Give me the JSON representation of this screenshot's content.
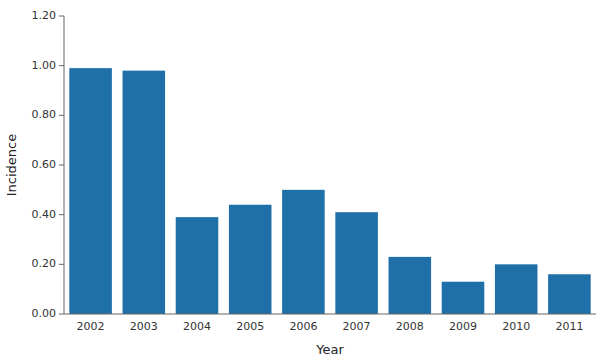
{
  "chart_data": {
    "type": "bar",
    "xlabel": "Year",
    "ylabel": "Incidence",
    "categories": [
      "2002",
      "2003",
      "2004",
      "2005",
      "2006",
      "2007",
      "2008",
      "2009",
      "2010",
      "2011"
    ],
    "values": [
      0.99,
      0.98,
      0.39,
      0.44,
      0.5,
      0.41,
      0.23,
      0.13,
      0.2,
      0.16
    ],
    "color": "#1F6FA8",
    "ylim": [
      0,
      1.2
    ],
    "yticks": [
      {
        "value": 0.0,
        "label": "0.00"
      },
      {
        "value": 0.2,
        "label": "0.20"
      },
      {
        "value": 0.4,
        "label": "0.40"
      },
      {
        "value": 0.6,
        "label": "0.60"
      },
      {
        "value": 0.8,
        "label": "0.80"
      },
      {
        "value": 1.0,
        "label": "1.00"
      },
      {
        "value": 1.2,
        "label": "1.20"
      }
    ],
    "grid": false
  }
}
